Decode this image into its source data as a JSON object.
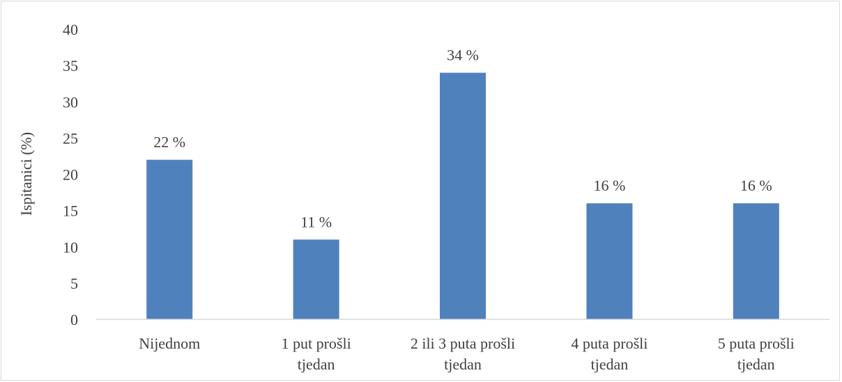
{
  "chart_data": {
    "type": "bar",
    "categories": [
      [
        "Nijednom"
      ],
      [
        "1 put prošli",
        "tjedan"
      ],
      [
        "2 ili 3 puta prošli",
        "tjedan"
      ],
      [
        "4 puta prošli",
        "tjedan"
      ],
      [
        "5 puta prošli",
        "tjedan"
      ]
    ],
    "values": [
      22,
      11,
      34,
      16,
      16
    ],
    "data_labels": [
      "22 %",
      "11 %",
      "34 %",
      "16 %",
      "16 %"
    ],
    "yticks": [
      0,
      5,
      10,
      15,
      20,
      25,
      30,
      35,
      40
    ],
    "ylabel": "Ispitanici (%)",
    "xlabel": "",
    "ylim": [
      0,
      40
    ],
    "grid": false,
    "legend": "none",
    "bar_color": "#4f81bd",
    "axis_color": "#d9d9d9",
    "text_color": "#404040"
  }
}
